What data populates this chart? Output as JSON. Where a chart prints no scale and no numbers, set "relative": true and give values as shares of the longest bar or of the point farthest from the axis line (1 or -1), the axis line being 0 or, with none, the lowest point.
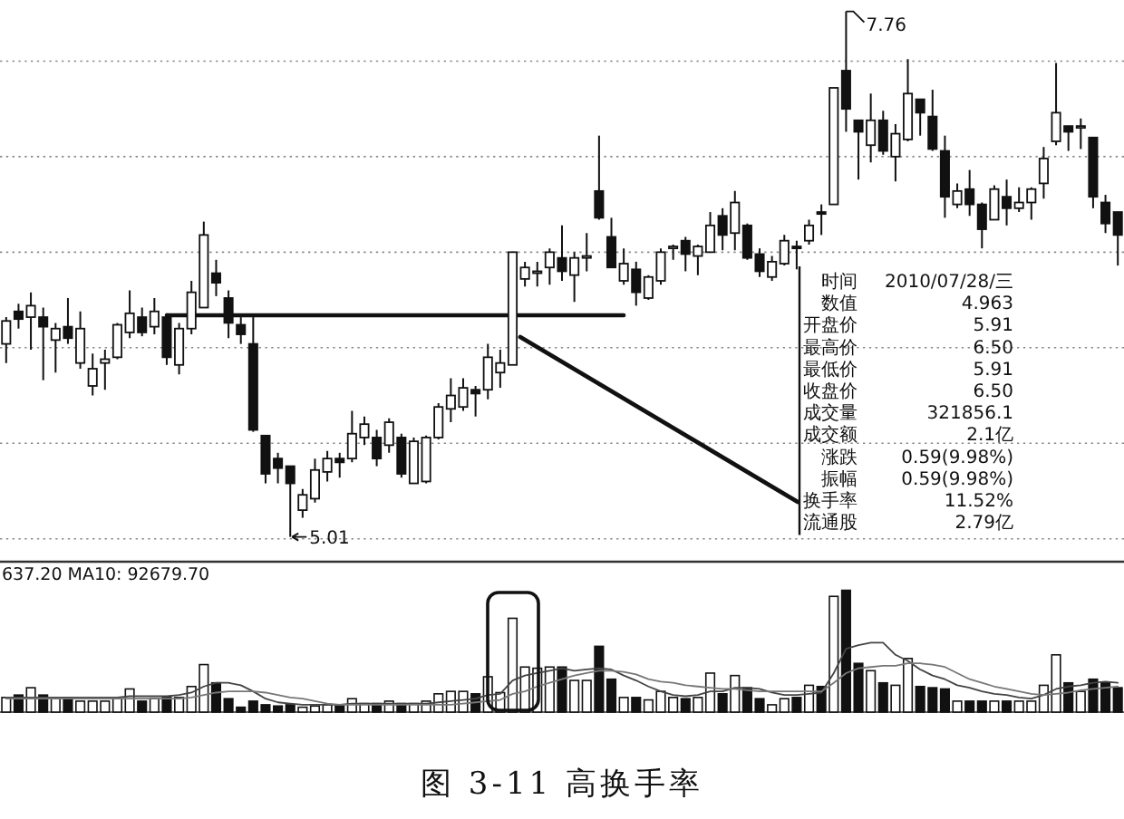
{
  "chart_data": [
    {
      "type": "candlestick",
      "title": "图 3-11 高换手率",
      "categories": [
        null,
        null,
        null,
        null,
        null,
        null,
        null,
        null,
        null,
        null,
        null,
        null,
        null,
        null,
        null,
        null,
        null,
        null,
        null,
        null,
        null,
        null,
        null,
        null,
        null,
        null,
        null,
        null,
        null,
        null,
        null,
        null,
        null,
        null,
        null,
        null,
        null,
        null,
        null,
        null,
        null,
        null,
        null,
        null,
        null,
        null,
        null,
        null,
        null,
        null,
        null,
        null,
        null,
        null,
        null,
        null,
        null,
        null,
        null,
        null,
        null,
        null,
        null,
        null,
        null,
        null,
        null,
        null,
        null,
        null,
        null,
        null,
        null,
        null,
        null,
        null,
        null,
        null,
        null,
        null,
        null,
        null,
        null,
        null,
        null,
        null,
        null,
        null,
        null,
        null,
        null
      ],
      "ohlc": [
        [
          6.02,
          6.16,
          5.92,
          6.14
        ],
        [
          6.19,
          6.23,
          6.1,
          6.15
        ],
        [
          6.16,
          6.29,
          5.99,
          6.22
        ],
        [
          6.16,
          6.21,
          5.83,
          6.11
        ],
        [
          6.04,
          6.13,
          5.87,
          6.1
        ],
        [
          6.11,
          6.26,
          6.02,
          6.05
        ],
        [
          5.92,
          6.19,
          5.89,
          6.1
        ],
        [
          5.8,
          5.97,
          5.75,
          5.89
        ],
        [
          5.92,
          5.99,
          5.78,
          5.94
        ],
        [
          5.95,
          6.13,
          5.94,
          6.12
        ],
        [
          6.08,
          6.3,
          6.05,
          6.18
        ],
        [
          6.16,
          6.21,
          6.06,
          6.08
        ],
        [
          6.11,
          6.26,
          6.07,
          6.19
        ],
        [
          6.16,
          6.18,
          5.91,
          5.95
        ],
        [
          5.91,
          6.13,
          5.86,
          6.1
        ],
        [
          6.1,
          6.35,
          6.07,
          6.29
        ],
        [
          6.21,
          6.66,
          6.21,
          6.59
        ],
        [
          6.39,
          6.46,
          6.27,
          6.34
        ],
        [
          6.26,
          6.3,
          6.05,
          6.13
        ],
        [
          6.12,
          6.16,
          6.02,
          6.07
        ],
        [
          6.02,
          6.16,
          5.56,
          5.57
        ],
        [
          5.54,
          5.54,
          5.29,
          5.34
        ],
        [
          5.42,
          5.45,
          5.29,
          5.37
        ],
        [
          5.38,
          5.38,
          5.01,
          5.29
        ],
        [
          5.15,
          5.26,
          5.11,
          5.23
        ],
        [
          5.21,
          5.42,
          5.19,
          5.36
        ],
        [
          5.35,
          5.46,
          5.3,
          5.42
        ],
        [
          5.42,
          5.45,
          5.32,
          5.4
        ],
        [
          5.42,
          5.67,
          5.4,
          5.55
        ],
        [
          5.53,
          5.64,
          5.49,
          5.6
        ],
        [
          5.53,
          5.57,
          5.38,
          5.42
        ],
        [
          5.49,
          5.63,
          5.45,
          5.61
        ],
        [
          5.53,
          5.55,
          5.32,
          5.34
        ],
        [
          5.29,
          5.53,
          5.29,
          5.51
        ],
        [
          5.3,
          5.54,
          5.29,
          5.53
        ],
        [
          5.53,
          5.71,
          5.52,
          5.69
        ],
        [
          5.68,
          5.84,
          5.61,
          5.75
        ],
        [
          5.69,
          5.84,
          5.67,
          5.79
        ],
        [
          5.78,
          5.8,
          5.64,
          5.76
        ],
        [
          5.78,
          6.02,
          5.73,
          5.95
        ],
        [
          5.87,
          5.99,
          5.79,
          5.92
        ],
        [
          5.91,
          6.5,
          5.91,
          6.5
        ],
        [
          6.36,
          6.45,
          6.32,
          6.42
        ],
        [
          6.39,
          6.45,
          6.32,
          6.4
        ],
        [
          6.42,
          6.52,
          6.33,
          6.5
        ],
        [
          6.47,
          6.64,
          6.35,
          6.4
        ],
        [
          6.38,
          6.5,
          6.24,
          6.47
        ],
        [
          6.47,
          6.6,
          6.4,
          6.48
        ],
        [
          6.82,
          7.11,
          6.67,
          6.68
        ],
        [
          6.58,
          6.68,
          6.42,
          6.42
        ],
        [
          6.35,
          6.52,
          6.33,
          6.44
        ],
        [
          6.41,
          6.45,
          6.22,
          6.29
        ],
        [
          6.26,
          6.38,
          6.25,
          6.37
        ],
        [
          6.35,
          6.52,
          6.33,
          6.5
        ],
        [
          6.52,
          6.54,
          6.46,
          6.53
        ],
        [
          6.56,
          6.58,
          6.4,
          6.49
        ],
        [
          6.48,
          6.54,
          6.38,
          6.53
        ],
        [
          6.5,
          6.71,
          6.5,
          6.64
        ],
        [
          6.69,
          6.73,
          6.51,
          6.59
        ],
        [
          6.6,
          6.82,
          6.51,
          6.76
        ],
        [
          6.64,
          6.65,
          6.46,
          6.47
        ],
        [
          6.49,
          6.52,
          6.37,
          6.4
        ],
        [
          6.37,
          6.48,
          6.35,
          6.45
        ],
        [
          6.44,
          6.59,
          6.43,
          6.56
        ],
        [
          6.53,
          6.56,
          6.41,
          6.52
        ],
        [
          6.56,
          6.67,
          6.54,
          6.64
        ],
        [
          6.71,
          6.75,
          6.59,
          6.7
        ],
        [
          6.75,
          7.36,
          6.75,
          7.36
        ],
        [
          7.45,
          7.76,
          7.13,
          7.25
        ],
        [
          7.19,
          7.19,
          6.88,
          7.13
        ],
        [
          7.06,
          7.33,
          6.97,
          7.19
        ],
        [
          7.19,
          7.24,
          7.01,
          7.03
        ],
        [
          7.0,
          7.17,
          6.87,
          7.12
        ],
        [
          7.09,
          7.51,
          7.08,
          7.33
        ],
        [
          7.3,
          7.3,
          7.11,
          7.23
        ],
        [
          7.21,
          7.35,
          7.03,
          7.04
        ],
        [
          7.03,
          7.11,
          6.68,
          6.79
        ],
        [
          6.75,
          6.86,
          6.73,
          6.82
        ],
        [
          6.83,
          6.93,
          6.69,
          6.75
        ],
        [
          6.75,
          6.76,
          6.52,
          6.62
        ],
        [
          6.67,
          6.85,
          6.67,
          6.83
        ],
        [
          6.79,
          6.88,
          6.64,
          6.73
        ],
        [
          6.73,
          6.84,
          6.71,
          6.76
        ],
        [
          6.76,
          6.84,
          6.67,
          6.83
        ],
        [
          6.86,
          7.05,
          6.78,
          6.99
        ],
        [
          7.08,
          7.49,
          7.06,
          7.23
        ],
        [
          7.16,
          7.16,
          7.03,
          7.13
        ],
        [
          7.16,
          7.2,
          7.04,
          7.16
        ],
        [
          7.1,
          7.1,
          6.73,
          6.79
        ],
        [
          6.76,
          6.8,
          6.6,
          6.65
        ],
        [
          6.71,
          6.71,
          6.43,
          6.59
        ]
      ],
      "series": [
        {
          "type": "line",
          "color": "#111111",
          "values": [
            null,
            null,
            null,
            null,
            null,
            null,
            null,
            null,
            null,
            null,
            null,
            null,
            null,
            6.17,
            6.17,
            6.17,
            6.17,
            6.17,
            6.17,
            6.17,
            6.17,
            6.17,
            6.17,
            6.17,
            6.17,
            6.17,
            6.17,
            6.17,
            6.17,
            6.17,
            6.17,
            6.17,
            6.17,
            6.17,
            6.17,
            6.17,
            6.17,
            6.17,
            6.17,
            6.17,
            6.17,
            6.17,
            6.17,
            6.17,
            6.17,
            6.17,
            6.17,
            6.17,
            6.17,
            6.17,
            6.17,
            null,
            null,
            null,
            null,
            null,
            null,
            null,
            null,
            null,
            null,
            null,
            null,
            null,
            null,
            null,
            null,
            null,
            null,
            null,
            null,
            null,
            null,
            null,
            null,
            null,
            null,
            null,
            null,
            null,
            null,
            null,
            null,
            null,
            null,
            null,
            null,
            null,
            null,
            null,
            null
          ]
        }
      ],
      "yticks": [
        {
          "value": 5.0,
          "label": null
        },
        {
          "value": 5.5,
          "label": null
        },
        {
          "value": 6.0,
          "label": null
        },
        {
          "value": 6.5,
          "label": null
        },
        {
          "value": 7.0,
          "label": null
        },
        {
          "value": 7.5,
          "label": null
        }
      ],
      "grid": "y",
      "annotations": [
        "7.76",
        "5.01",
        "时间",
        "2010/07/28/三",
        "数值",
        "4.963",
        "开盘价",
        "5.91",
        "最高价",
        "6.50",
        "最低价",
        "5.91",
        "收盘价",
        "6.50",
        "成交量",
        "321856.1",
        "成交额",
        "2.1亿",
        "涨跌",
        "0.59(9.98%)",
        "振幅",
        "0.59(9.98%)",
        "换手率",
        "11.52%",
        "流通股",
        "2.79亿"
      ]
    },
    {
      "type": "bar",
      "relative": true,
      "categories": [
        null,
        null,
        null,
        null,
        null,
        null,
        null,
        null,
        null,
        null,
        null,
        null,
        null,
        null,
        null,
        null,
        null,
        null,
        null,
        null,
        null,
        null,
        null,
        null,
        null,
        null,
        null,
        null,
        null,
        null,
        null,
        null,
        null,
        null,
        null,
        null,
        null,
        null,
        null,
        null,
        null,
        null,
        null,
        null,
        null,
        null,
        null,
        null,
        null,
        null,
        null,
        null,
        null,
        null,
        null,
        null,
        null,
        null,
        null,
        null,
        null,
        null,
        null,
        null,
        null,
        null,
        null,
        null,
        null,
        null,
        null,
        null,
        null,
        null,
        null,
        null,
        null,
        null,
        null,
        null,
        null,
        null,
        null,
        null,
        null,
        null,
        null,
        null,
        null,
        null,
        null
      ],
      "series": [
        {
          "type": "bar",
          "values": [
            0.12,
            0.14,
            0.2,
            0.14,
            0.11,
            0.12,
            0.09,
            0.09,
            0.09,
            0.11,
            0.19,
            0.09,
            0.11,
            0.12,
            0.12,
            0.21,
            0.39,
            0.24,
            0.11,
            0.04,
            0.09,
            0.06,
            0.05,
            0.06,
            0.04,
            0.05,
            0.06,
            0.05,
            0.11,
            0.07,
            0.07,
            0.09,
            0.07,
            0.07,
            0.09,
            0.15,
            0.17,
            0.17,
            0.15,
            0.29,
            0.16,
            0.77,
            0.37,
            0.36,
            0.37,
            0.37,
            0.26,
            0.26,
            0.54,
            0.27,
            0.12,
            0.12,
            0.1,
            0.17,
            0.12,
            0.11,
            0.12,
            0.32,
            0.15,
            0.3,
            0.2,
            0.11,
            0.06,
            0.11,
            0.12,
            0.22,
            0.21,
            0.95,
            1,
            0.4,
            0.34,
            0.24,
            0.22,
            0.44,
            0.21,
            0.2,
            0.19,
            0.09,
            0.09,
            0.09,
            0.09,
            0.09,
            0.09,
            0.09,
            0.22,
            0.47,
            0.24,
            0.17,
            0.27,
            0.24,
            0.2
          ],
          "colors": [
            "#ffffff",
            "#111111",
            "#ffffff",
            "#111111",
            "#ffffff",
            "#111111",
            "#ffffff",
            "#ffffff",
            "#ffffff",
            "#ffffff",
            "#ffffff",
            "#111111",
            "#ffffff",
            "#111111",
            "#ffffff",
            "#ffffff",
            "#ffffff",
            "#111111",
            "#111111",
            "#111111",
            "#111111",
            "#111111",
            "#111111",
            "#111111",
            "#ffffff",
            "#ffffff",
            "#ffffff",
            "#111111",
            "#ffffff",
            "#ffffff",
            "#111111",
            "#ffffff",
            "#111111",
            "#ffffff",
            "#ffffff",
            "#ffffff",
            "#ffffff",
            "#ffffff",
            "#111111",
            "#ffffff",
            "#ffffff",
            "#ffffff",
            "#ffffff",
            "#ffffff",
            "#ffffff",
            "#111111",
            "#ffffff",
            "#ffffff",
            "#111111",
            "#111111",
            "#ffffff",
            "#111111",
            "#ffffff",
            "#ffffff",
            "#ffffff",
            "#111111",
            "#ffffff",
            "#ffffff",
            "#111111",
            "#ffffff",
            "#111111",
            "#111111",
            "#ffffff",
            "#ffffff",
            "#111111",
            "#ffffff",
            "#111111",
            "#ffffff",
            "#111111",
            "#111111",
            "#ffffff",
            "#111111",
            "#ffffff",
            "#ffffff",
            "#111111",
            "#111111",
            "#111111",
            "#ffffff",
            "#111111",
            "#111111",
            "#ffffff",
            "#111111",
            "#ffffff",
            "#ffffff",
            "#ffffff",
            "#ffffff",
            "#111111",
            "#ffffff",
            "#111111",
            "#111111",
            "#111111"
          ]
        },
        {
          "type": "line",
          "color": "#444444",
          "values": [
            0.12,
            0.12,
            0.12,
            0.12,
            0.12,
            0.12,
            0.12,
            0.12,
            0.12,
            0.12,
            0.13,
            0.13,
            0.13,
            0.13,
            0.14,
            0.16,
            0.21,
            0.24,
            0.24,
            0.22,
            0.17,
            0.11,
            0.08,
            0.07,
            0.06,
            0.06,
            0.06,
            0.06,
            0.07,
            0.07,
            0.07,
            0.07,
            0.07,
            0.07,
            0.07,
            0.08,
            0.09,
            0.1,
            0.11,
            0.14,
            0.15,
            0.26,
            0.3,
            0.32,
            0.34,
            0.36,
            0.34,
            0.35,
            0.36,
            0.35,
            0.3,
            0.26,
            0.21,
            0.17,
            0.14,
            0.13,
            0.14,
            0.17,
            0.17,
            0.2,
            0.2,
            0.19,
            0.16,
            0.14,
            0.14,
            0.15,
            0.16,
            0.32,
            0.52,
            0.55,
            0.57,
            0.57,
            0.47,
            0.42,
            0.35,
            0.3,
            0.27,
            0.22,
            0.2,
            0.17,
            0.15,
            0.14,
            0.12,
            0.11,
            0.14,
            0.19,
            0.21,
            0.22,
            0.24,
            0.25,
            0.24
          ]
        },
        {
          "type": "line",
          "color": "#777777",
          "values": [
            0.11,
            0.11,
            0.11,
            0.11,
            0.11,
            0.11,
            0.11,
            0.11,
            0.11,
            0.11,
            0.11,
            0.11,
            0.11,
            0.11,
            0.11,
            0.12,
            0.14,
            0.16,
            0.17,
            0.17,
            0.17,
            0.16,
            0.14,
            0.12,
            0.11,
            0.09,
            0.07,
            0.06,
            0.06,
            0.06,
            0.06,
            0.06,
            0.06,
            0.06,
            0.06,
            0.06,
            0.06,
            0.07,
            0.08,
            0.09,
            0.1,
            0.15,
            0.17,
            0.21,
            0.24,
            0.27,
            0.3,
            0.32,
            0.34,
            0.34,
            0.33,
            0.31,
            0.27,
            0.25,
            0.24,
            0.22,
            0.21,
            0.2,
            0.19,
            0.19,
            0.18,
            0.17,
            0.17,
            0.17,
            0.17,
            0.17,
            0.17,
            0.24,
            0.32,
            0.36,
            0.37,
            0.38,
            0.38,
            0.4,
            0.4,
            0.39,
            0.37,
            0.32,
            0.27,
            0.24,
            0.21,
            0.19,
            0.17,
            0.15,
            0.14,
            0.15,
            0.16,
            0.18,
            0.19,
            0.2,
            0.21
          ]
        }
      ],
      "annotations": [
        "637.20 MA10: 92679.70"
      ]
    }
  ]
}
